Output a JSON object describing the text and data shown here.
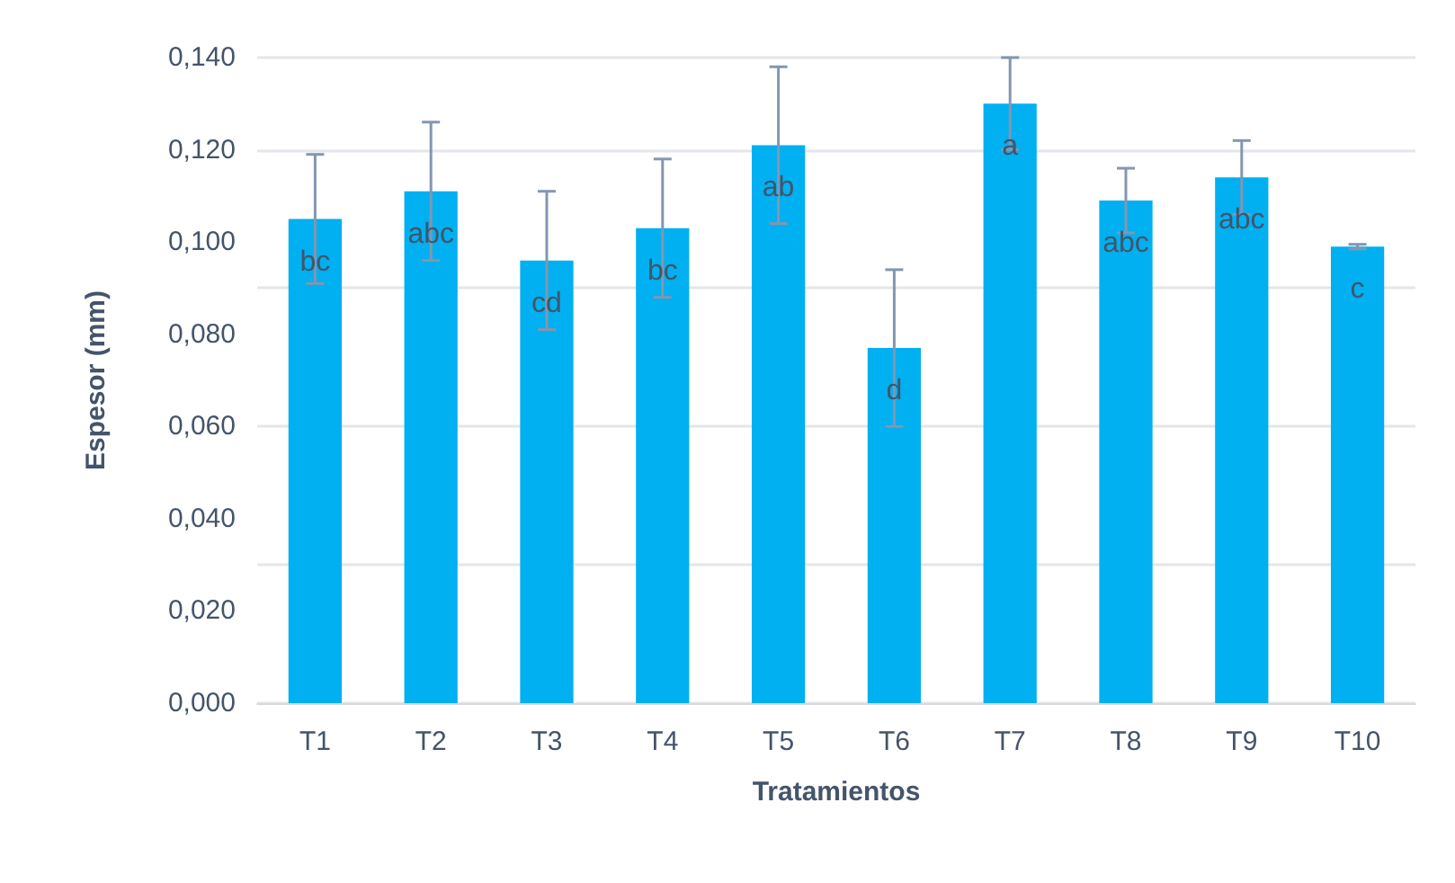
{
  "chart_data": {
    "type": "bar",
    "xlabel": "Tratamientos",
    "ylabel": "Espesor (mm)",
    "categories": [
      "T1",
      "T2",
      "T3",
      "T4",
      "T5",
      "T6",
      "T7",
      "T8",
      "T9",
      "T10"
    ],
    "values": [
      0.105,
      0.111,
      0.096,
      0.103,
      0.121,
      0.077,
      0.13,
      0.109,
      0.114,
      0.099
    ],
    "errors": [
      0.014,
      0.015,
      0.015,
      0.015,
      0.017,
      0.017,
      0.01,
      0.007,
      0.008,
      0.0005
    ],
    "color": "#00b0f0",
    "ylim": [
      0,
      0.14
    ],
    "yticks": [
      {
        "value": 0,
        "label": "0,000"
      },
      {
        "value": 0.02,
        "label": "0,020"
      },
      {
        "value": 0.04,
        "label": "0,040"
      },
      {
        "value": 0.06,
        "label": "0,060"
      },
      {
        "value": 0.08,
        "label": "0,080"
      },
      {
        "value": 0.1,
        "label": "0,100"
      },
      {
        "value": 0.12,
        "label": "0,120"
      },
      {
        "value": 0.14,
        "label": "0,140"
      }
    ],
    "grid": "y",
    "annotations": [
      "bc",
      "abc",
      "cd",
      "bc",
      "ab",
      "d",
      "a",
      "abc",
      "abc",
      "c"
    ]
  }
}
